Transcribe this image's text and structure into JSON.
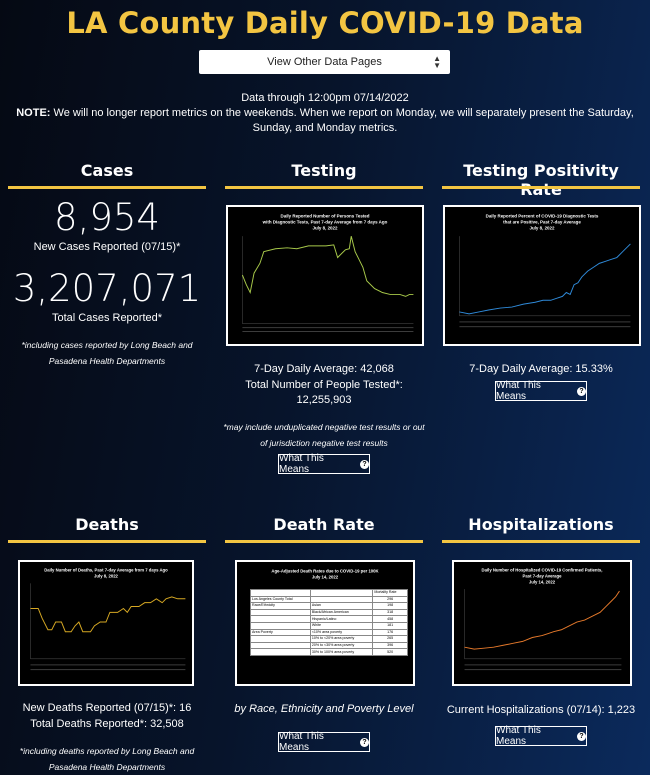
{
  "title": "LA County Daily COVID-19 Data",
  "nav_select": {
    "label": "View Other Data Pages",
    "icon": "updown-arrows-icon"
  },
  "data_through": "Data through 12:00pm 07/14/2022",
  "note": {
    "label": "NOTE:",
    "text": " We will no longer report metrics on the weekends. When we report on Monday, we will separately present the Saturday, Sunday, and Monday metrics."
  },
  "colors": {
    "accent": "#f3c542",
    "testing_line": "#a8c94a",
    "positivity_line": "#2f8ad9",
    "deaths_line": "#d6a823",
    "hosp_line": "#e5792b"
  },
  "cases": {
    "title": "Cases",
    "new_cases": "8,954",
    "new_cases_label": "New Cases Reported (07/15)*",
    "total_cases": "3,207,071",
    "total_cases_label": "Total Cases Reported*",
    "footnote": "*including cases reported by Long Beach and Pasadena Health Departments"
  },
  "testing": {
    "title": "Testing",
    "chart_title": "Daily Reported Number of Persons Tested with Diagnostic Tests, Past 7-day Average from 7 days Ago July 8, 2022",
    "avg": "7-Day Daily Average: 42,068",
    "total": "Total Number of People Tested*: 12,255,903",
    "footnote": "*may include unduplicated negative test results or out of jurisdiction negative test results",
    "button": "What This Means"
  },
  "positivity": {
    "title": "Testing Positivity Rate",
    "chart_title": "Daily Reported Percent of COVID-19 Diagnostic Tests that are Positive, Past 7-day Average July 8, 2022",
    "avg": "7-Day Daily Average: 15.33%",
    "button": "What This Means"
  },
  "deaths": {
    "title": "Deaths",
    "chart_title": "Daily Number of Deaths, Past 7-day Average from 7 days Ago July 8, 2022",
    "new_deaths": "New Deaths Reported (07/15)*: 16",
    "total_deaths": "Total Deaths Reported*: 32,508",
    "footnote": "*including deaths reported by Long Beach and Pasadena Health Departments"
  },
  "death_rate": {
    "title": "Death Rate",
    "chart_title": "Age-Adjusted Death Rates due to COVID-19 per 100K July 14, 2022",
    "caption": "by Race, Ethnicity and Poverty Level",
    "button": "What This Means",
    "table_header": "Mortality Rate",
    "rows": [
      [
        "Los Angeles County Total",
        "",
        "296"
      ],
      [
        "Race/Ethnicity",
        "Asian",
        "198"
      ],
      [
        "",
        "Black/African American",
        "318"
      ],
      [
        "",
        "Hispanic/Latino",
        "458"
      ],
      [
        "",
        "White",
        "181"
      ],
      [
        "Area Poverty",
        "<10% area poverty",
        "176"
      ],
      [
        "",
        "10% to <20% area poverty",
        "265"
      ],
      [
        "",
        "20% to <30% area poverty",
        "396"
      ],
      [
        "",
        "30% to 100% area poverty",
        "520"
      ]
    ]
  },
  "hospitalizations": {
    "title": "Hospitalizations",
    "chart_title": "Daily Number of Hospitalized COVID-19 Confirmed Patients, Past 7-day Average July 14, 2022",
    "current": "Current Hospitalizations (07/14): 1,223",
    "button": "What This Means"
  }
}
